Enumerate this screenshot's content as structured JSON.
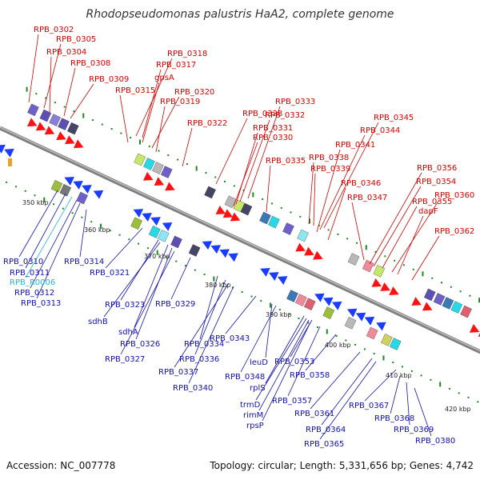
{
  "title": "Rhodopseudomonas palustris HaA2, complete genome",
  "footer": {
    "accession": "Accession: NC_007778",
    "summary": "Topology: circular; Length: 5,331,656 bp; Genes: 4,742"
  },
  "colors": {
    "backbone": "#7f7f7f",
    "forward_label": "#d40000",
    "reverse_label": "#1010b0",
    "rna_label": "#22b7e0",
    "tick_green": "#1a8a1a"
  },
  "kbp_marks": [
    "350 kbp",
    "360 kbp",
    "370 kbp",
    "380 kbp",
    "390 kbp",
    "400 kbp",
    "410 kbp",
    "420 kbp"
  ],
  "forward_labels": [
    "RPB_0302",
    "RPB_0305",
    "RPB_0304",
    "RPB_0308",
    "RPB_0309",
    "RPB_0318",
    "RPB_0317",
    "gpsA",
    "RPB_0315",
    "RPB_0320",
    "RPB_0319",
    "RPB_0322",
    "RPB_0328",
    "RPB_0333",
    "RPB_0332",
    "RPB_0331",
    "RPB_0330",
    "RPB_0335",
    "RPB_0338",
    "RPB_0339",
    "RPB_0345",
    "RPB_0344",
    "RPB_0341",
    "RPB_0346",
    "RPB_0347",
    "RPB_0356",
    "RPB_0354",
    "RPB_0355",
    "RPB_0360",
    "dapF",
    "RPB_0362"
  ],
  "reverse_labels": [
    "RPB_0310",
    "RPB_0311",
    "RPB_R0006",
    "RPB_0312",
    "RPB_0313",
    "RPB_0314",
    "RPB_0321",
    "RPB_0323",
    "sdhB",
    "sdhA",
    "RPB_0326",
    "RPB_0327",
    "RPB_0329",
    "RPB_0334",
    "RPB_0336",
    "RPB_0337",
    "RPB_0340",
    "RPB_0343",
    "leuD",
    "RPB_0348",
    "RPB_0353",
    "rplS",
    "trmD",
    "rimM",
    "rpsP",
    "RPB_0357",
    "RPB_0358",
    "RPB_0361",
    "RPB_0364",
    "RPB_0365",
    "RPB_0367",
    "RPB_0368",
    "RPB_0369",
    "RPB_0380"
  ]
}
